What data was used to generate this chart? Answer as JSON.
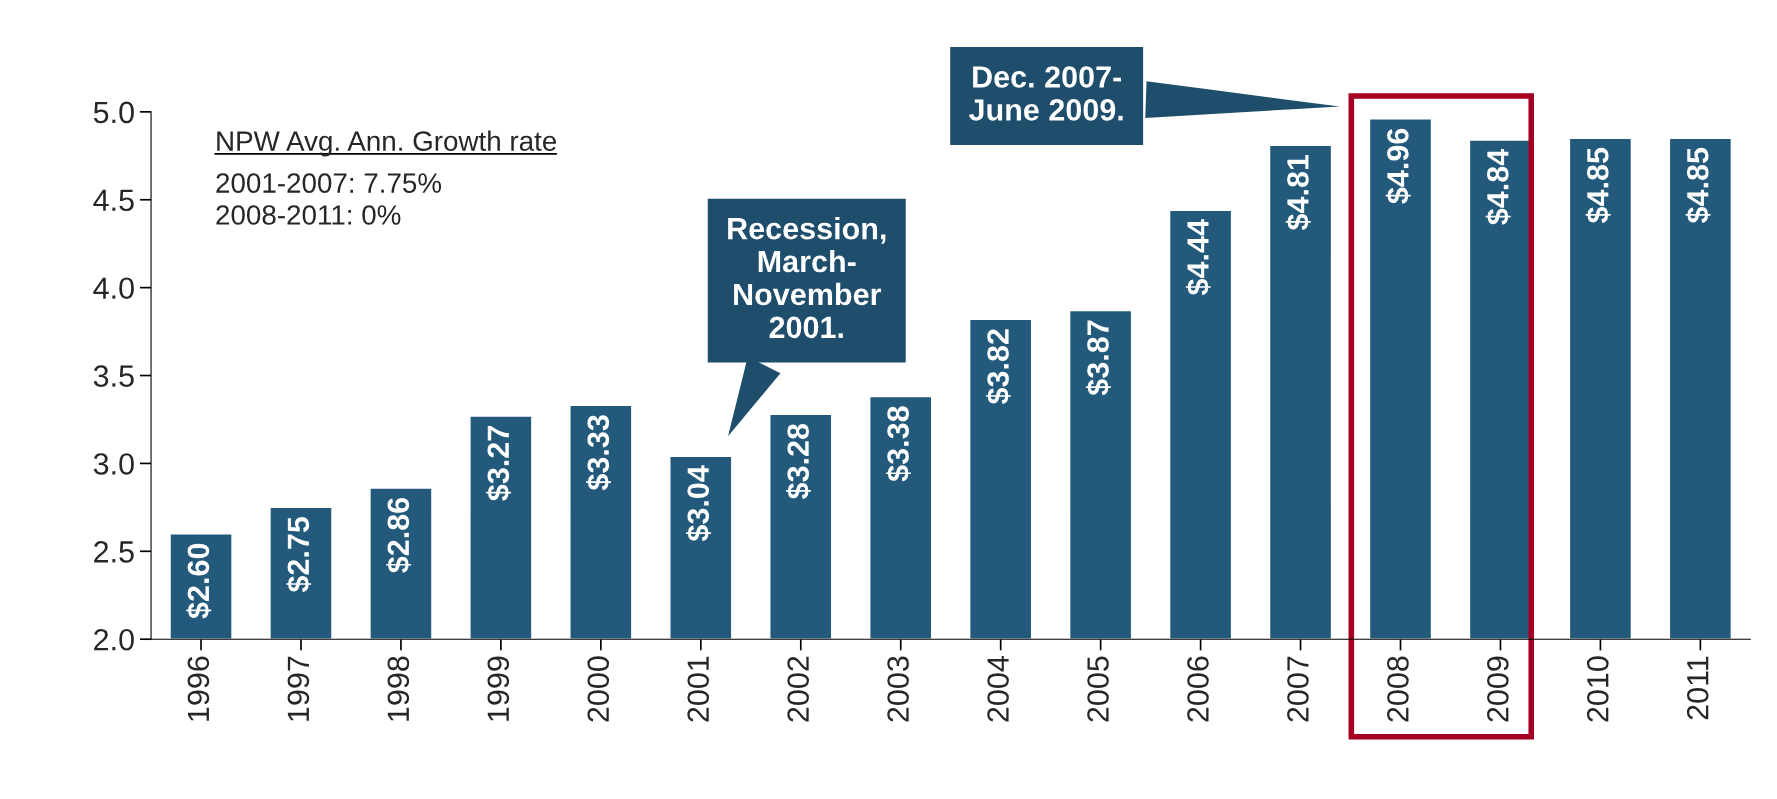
{
  "chart_data": {
    "type": "bar",
    "categories": [
      "1996",
      "1997",
      "1998",
      "1999",
      "2000",
      "2001",
      "2002",
      "2003",
      "2004",
      "2005",
      "2006",
      "2007",
      "2008",
      "2009",
      "2010",
      "2011"
    ],
    "values": [
      2.6,
      2.75,
      2.86,
      3.27,
      3.33,
      3.04,
      3.28,
      3.38,
      3.82,
      3.87,
      4.44,
      4.81,
      4.96,
      4.84,
      4.85,
      4.85
    ],
    "value_labels": [
      "$2.60",
      "$2.75",
      "$2.86",
      "$3.27",
      "$3.33",
      "$3.04",
      "$3.28",
      "$3.38",
      "$3.82",
      "$3.87",
      "$4.44",
      "$4.81",
      "$4.96",
      "$4.84",
      "$4.85",
      "$4.85"
    ],
    "color": "#235a7c",
    "ylim": [
      2.0,
      5.0
    ],
    "yticks": [
      {
        "value": 2.0,
        "label": "2.0"
      },
      {
        "value": 2.5,
        "label": "2.5"
      },
      {
        "value": 3.0,
        "label": "3.0"
      },
      {
        "value": 3.5,
        "label": "3.5"
      },
      {
        "value": 4.0,
        "label": "4.0"
      },
      {
        "value": 4.5,
        "label": "4.5"
      },
      {
        "value": 5.0,
        "label": "5.0"
      }
    ],
    "annotations": [
      "NPW Avg. Ann. Growth rate",
      "2001-2007: 7.75%\n2008-2011: 0%",
      "Recession,\nMarch-\nNovember\n2001.",
      "Dec. 2007-\nJune 2009."
    ],
    "grid": false,
    "legend": false
  }
}
